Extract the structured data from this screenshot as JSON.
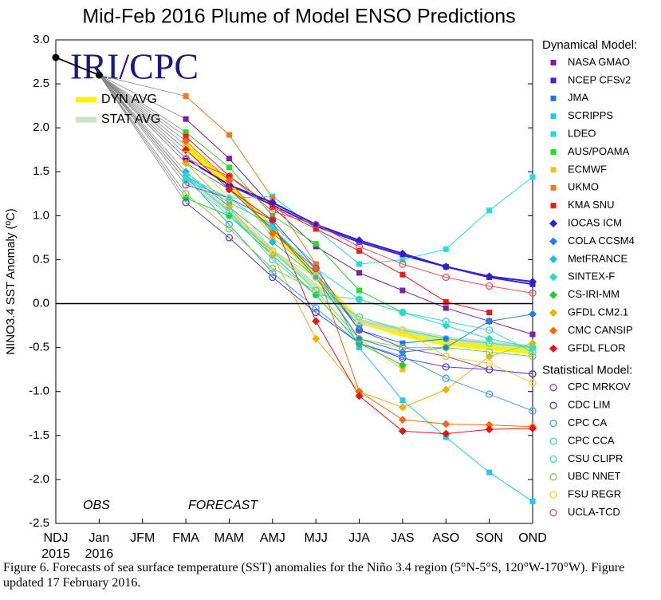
{
  "chart_data": {
    "type": "line",
    "title": "Mid-Feb 2016 Plume of Model ENSO Predictions",
    "y_label": "NINO3.4 SST Anomaly (ºC)",
    "logo": "IRI/CPC",
    "obs_label": "OBS",
    "forecast_label": "FORECAST",
    "caption": "Figure 6. Forecasts of sea surface temperature (SST) anomalies for the Niño 3.4 region (5°N-5°S, 120°W-170°W). Figure updated 17 February 2016.",
    "categories": [
      "NDJ",
      "Jan",
      "JFM",
      "FMA",
      "MAM",
      "AMJ",
      "MJJ",
      "JJA",
      "JAS",
      "ASO",
      "SON",
      "OND"
    ],
    "year_labels": [
      "2015",
      "2016"
    ],
    "ylim": [
      -2.5,
      3.0
    ],
    "yticks": [
      {
        "value": 3.0,
        "label": "3.0"
      },
      {
        "value": 2.5,
        "label": "2.5"
      },
      {
        "value": 2.0,
        "label": "2.0"
      },
      {
        "value": 1.5,
        "label": "1.5"
      },
      {
        "value": 1.0,
        "label": "1.0"
      },
      {
        "value": 0.5,
        "label": "0.5"
      },
      {
        "value": 0.0,
        "label": "0.0"
      },
      {
        "value": -0.5,
        "label": "-0.5"
      },
      {
        "value": -1.0,
        "label": "-1.0"
      },
      {
        "value": -1.5,
        "label": "-1.5"
      },
      {
        "value": -2.0,
        "label": "-2.0"
      },
      {
        "value": -2.5,
        "label": "-2.5"
      }
    ],
    "zero_line": 0,
    "observed": {
      "color": "#000000",
      "values": [
        2.8,
        2.6,
        null,
        null,
        null,
        null,
        null,
        null,
        null,
        null,
        null,
        null
      ]
    },
    "fan_color": "#888888",
    "averages": [
      {
        "name": "DYN AVG",
        "color": "#f5f500",
        "values": [
          null,
          null,
          null,
          1.8,
          1.35,
          0.85,
          0.3,
          -0.2,
          -0.35,
          -0.45,
          -0.5,
          -0.55
        ]
      },
      {
        "name": "STAT AVG",
        "color": "#c8e4c0",
        "values": [
          null,
          null,
          null,
          1.45,
          1.05,
          0.6,
          0.2,
          -0.2,
          -0.3,
          -0.4,
          -0.45,
          -0.5
        ]
      }
    ],
    "dynamical": {
      "title": "Dynamical Model:",
      "series": [
        {
          "name": "NASA GMAO",
          "color": "#7a1fa2",
          "marker": "square",
          "values": [
            null,
            null,
            null,
            2.1,
            1.65,
            1.1,
            0.65,
            0.35,
            0.15,
            -0.05,
            -0.2,
            -0.35
          ]
        },
        {
          "name": "NCEP CFSv2",
          "color": "#4020e0",
          "marker": "square",
          "values": [
            null,
            null,
            null,
            1.65,
            1.35,
            1.12,
            0.88,
            0.7,
            0.55,
            0.42,
            0.3,
            0.22
          ]
        },
        {
          "name": "JMA",
          "color": "#1f78e0",
          "marker": "square",
          "values": [
            null,
            null,
            null,
            1.75,
            1.3,
            0.85,
            0.35,
            -0.3,
            -0.45,
            -0.4,
            null,
            null
          ]
        },
        {
          "name": "SCRIPPS",
          "color": "#22c8f0",
          "marker": "square",
          "values": [
            null,
            null,
            null,
            1.45,
            1.15,
            0.9,
            0.45,
            -0.5,
            -1.1,
            -1.52,
            -1.92,
            -2.25
          ]
        },
        {
          "name": "LDEO",
          "color": "#22e0d0",
          "marker": "square",
          "values": [
            null,
            null,
            null,
            1.4,
            1.2,
            1.22,
            0.85,
            0.45,
            0.5,
            0.62,
            1.06,
            1.44
          ]
        },
        {
          "name": "AUS/POAMA",
          "color": "#22e022",
          "marker": "square",
          "values": [
            null,
            null,
            null,
            1.95,
            1.55,
            1.0,
            0.68,
            0.15,
            -0.1,
            null,
            null,
            null
          ]
        },
        {
          "name": "ECMWF",
          "color": "#f0c020",
          "marker": "square",
          "values": [
            null,
            null,
            null,
            1.8,
            1.4,
            0.75,
            0.35,
            -0.4,
            -0.75,
            null,
            null,
            null
          ]
        },
        {
          "name": "UKMO",
          "color": "#f07820",
          "marker": "square",
          "values": [
            null,
            null,
            null,
            2.36,
            1.92,
            1.2,
            0.45,
            null,
            null,
            null,
            null,
            null
          ]
        },
        {
          "name": "KMA SNU",
          "color": "#f01818",
          "marker": "square",
          "values": [
            null,
            null,
            null,
            1.9,
            1.45,
            1.1,
            0.85,
            0.6,
            0.33,
            0.02,
            -0.1,
            null
          ]
        },
        {
          "name": "IOCAS ICM",
          "color": "#3020d0",
          "marker": "diamond",
          "values": [
            null,
            null,
            null,
            1.65,
            1.35,
            1.15,
            0.9,
            0.72,
            0.57,
            0.42,
            0.31,
            0.25
          ]
        },
        {
          "name": "COLA CCSM4",
          "color": "#2080e0",
          "marker": "diamond",
          "values": [
            null,
            null,
            null,
            1.6,
            1.3,
            0.85,
            0.3,
            -0.4,
            -0.55,
            -0.5,
            -0.2,
            -0.12
          ]
        },
        {
          "name": "MetFRANCE",
          "color": "#20b8f0",
          "marker": "diamond",
          "values": [
            null,
            null,
            null,
            1.5,
            1.1,
            0.7,
            0.3,
            -0.25,
            null,
            null,
            null,
            null
          ]
        },
        {
          "name": "SINTEX-F",
          "color": "#20e0c0",
          "marker": "diamond",
          "values": [
            null,
            null,
            null,
            1.45,
            1.2,
            0.85,
            0.4,
            0.05,
            -0.1,
            -0.25,
            -0.4,
            -0.5
          ]
        },
        {
          "name": "CS-IRI-MM",
          "color": "#20d020",
          "marker": "diamond",
          "values": [
            null,
            null,
            null,
            1.2,
            1.0,
            0.55,
            0.1,
            -0.45,
            -0.7,
            null,
            null,
            null
          ]
        },
        {
          "name": "GFDL CM2.1",
          "color": "#f0b000",
          "marker": "diamond",
          "values": [
            null,
            null,
            null,
            1.6,
            1.1,
            0.55,
            -0.4,
            -1.0,
            -1.18,
            -0.98,
            -0.6,
            -0.45
          ]
        },
        {
          "name": "CMC CANSIP",
          "color": "#f06a10",
          "marker": "diamond",
          "values": [
            null,
            null,
            null,
            1.85,
            1.4,
            0.8,
            0.4,
            -1.0,
            -1.32,
            -1.37,
            -1.38,
            -1.4
          ]
        },
        {
          "name": "GFDL FLOR",
          "color": "#f01010",
          "marker": "diamond",
          "values": [
            null,
            null,
            null,
            1.75,
            1.3,
            0.95,
            -0.2,
            -1.05,
            -1.45,
            -1.48,
            -1.43,
            -1.42
          ]
        }
      ]
    },
    "statistical": {
      "title": "Statistical Model:",
      "series": [
        {
          "name": "CPC MRKOV",
          "color": "#9040c0",
          "marker": "circle",
          "values": [
            null,
            null,
            null,
            1.35,
            1.2,
            0.95,
            0.4,
            -0.3,
            -0.5,
            -0.6,
            -0.75,
            -0.8
          ]
        },
        {
          "name": "CDC LIM",
          "color": "#5040e0",
          "marker": "circle",
          "values": [
            null,
            null,
            null,
            1.15,
            0.75,
            0.3,
            -0.1,
            -0.45,
            -0.62,
            -0.72,
            -0.75,
            -0.8
          ]
        },
        {
          "name": "CPC CA",
          "color": "#40a0f0",
          "marker": "circle",
          "values": [
            null,
            null,
            null,
            1.45,
            0.9,
            0.35,
            -0.05,
            -0.45,
            -0.6,
            -0.85,
            -1.03,
            -1.22
          ]
        },
        {
          "name": "CPC CCA",
          "color": "#40d0f0",
          "marker": "circle",
          "values": [
            null,
            null,
            null,
            1.45,
            1.05,
            0.5,
            0.1,
            0.05,
            -0.1,
            -0.2,
            -0.3,
            -0.55
          ]
        },
        {
          "name": "CSU CLIPR",
          "color": "#40e0b0",
          "marker": "circle",
          "values": [
            null,
            null,
            null,
            1.4,
            1.0,
            0.6,
            0.15,
            -0.15,
            -0.3,
            -0.4,
            -0.45,
            -0.5
          ]
        },
        {
          "name": "UBC NNET",
          "color": "#80d040",
          "marker": "circle",
          "values": [
            null,
            null,
            null,
            1.25,
            0.85,
            0.4,
            0.15,
            -0.4,
            -0.5,
            -0.5,
            -0.55,
            -0.6
          ]
        },
        {
          "name": "FSU REGR",
          "color": "#f0d040",
          "marker": "circle",
          "values": [
            null,
            null,
            null,
            1.7,
            1.2,
            0.6,
            0.3,
            -0.2,
            -0.3,
            -0.6,
            -0.68,
            -0.9
          ]
        },
        {
          "name": "UCLA-TCD",
          "color": "#f05050",
          "marker": "circle",
          "values": [
            null,
            null,
            null,
            1.65,
            1.45,
            1.05,
            0.9,
            0.65,
            0.45,
            0.3,
            0.2,
            0.12
          ]
        }
      ]
    }
  }
}
